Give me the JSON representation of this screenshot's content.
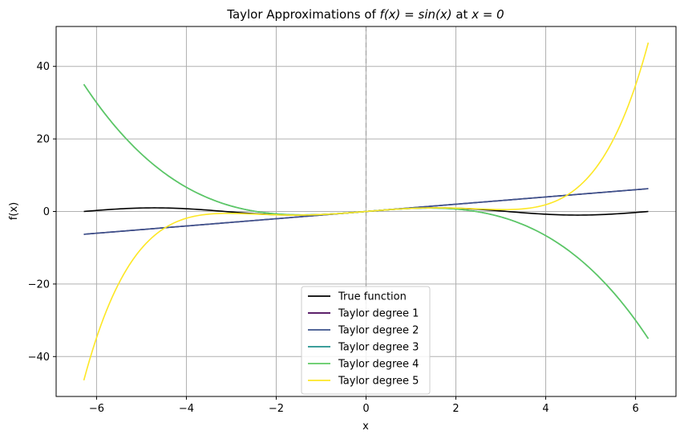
{
  "chart_data": {
    "type": "line",
    "title_prefix": "Taylor Approximations of ",
    "title_math": "f(x) = sin(x)",
    "title_mid": " at ",
    "title_point": "x = 0",
    "xlabel": "x",
    "ylabel": "f(x)",
    "xlim": [
      -6.9,
      6.9
    ],
    "ylim": [
      -51,
      51
    ],
    "x_ticks": [
      -6,
      -4,
      -2,
      0,
      2,
      4,
      6
    ],
    "x_tick_labels": [
      "−6",
      "−4",
      "−2",
      "0",
      "2",
      "4",
      "6"
    ],
    "y_ticks": [
      -40,
      -20,
      0,
      20,
      40
    ],
    "y_tick_labels": [
      "−40",
      "−20",
      "0",
      "20",
      "40"
    ],
    "grid": true,
    "vline_x": 0,
    "x_range": [
      -6.2832,
      6.2832
    ],
    "legend_position": "lower center",
    "series": [
      {
        "name": "True function",
        "kind": "sin",
        "color": "#000000"
      },
      {
        "name": "Taylor degree 1",
        "kind": "taylor",
        "degree": 1,
        "color": "#440154"
      },
      {
        "name": "Taylor degree 2",
        "kind": "taylor",
        "degree": 2,
        "color": "#3b528b"
      },
      {
        "name": "Taylor degree 3",
        "kind": "taylor",
        "degree": 3,
        "color": "#21918c"
      },
      {
        "name": "Taylor degree 4",
        "kind": "taylor",
        "degree": 4,
        "color": "#5ec962"
      },
      {
        "name": "Taylor degree 5",
        "kind": "taylor",
        "degree": 5,
        "color": "#fde725"
      }
    ]
  }
}
